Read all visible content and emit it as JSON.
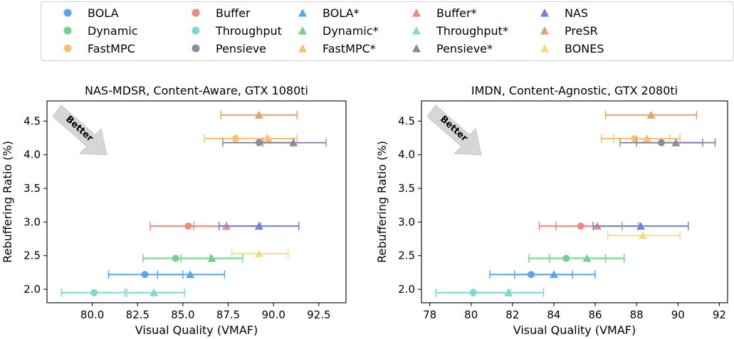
{
  "legend": [
    {
      "label": "BOLA",
      "color": "#5aa6ea",
      "marker": "circle"
    },
    {
      "label": "Dynamic",
      "color": "#6fd48a",
      "marker": "circle"
    },
    {
      "label": "FastMPC",
      "color": "#f9c26c",
      "marker": "circle"
    },
    {
      "label": "Buffer",
      "color": "#f2877c",
      "marker": "circle"
    },
    {
      "label": "Throughput",
      "color": "#7fd9d0",
      "marker": "circle"
    },
    {
      "label": "Pensieve",
      "color": "#8c8aa6",
      "marker": "circle"
    },
    {
      "label": "BOLA*",
      "color": "#5aa6ea",
      "marker": "triangle"
    },
    {
      "label": "Dynamic*",
      "color": "#6fd48a",
      "marker": "triangle"
    },
    {
      "label": "FastMPC*",
      "color": "#f9c26c",
      "marker": "triangle"
    },
    {
      "label": "Buffer*",
      "color": "#f2877c",
      "marker": "triangle"
    },
    {
      "label": "Throughput*",
      "color": "#7fd9d0",
      "marker": "triangle"
    },
    {
      "label": "Pensieve*",
      "color": "#8c8aa6",
      "marker": "triangle"
    },
    {
      "label": "NAS",
      "color": "#6d82d8",
      "marker": "triangle"
    },
    {
      "label": "PreSR",
      "color": "#eba162",
      "marker": "triangle"
    },
    {
      "label": "BONES",
      "color": "#f1de84",
      "marker": "triangle"
    }
  ],
  "better_label": "Better",
  "chart_data": [
    {
      "type": "scatter",
      "title": "NAS-MDSR, Content-Aware, GTX 1080ti",
      "xlabel": "Visual Quality (VMAF)",
      "ylabel": "Rebuffering Ratio (%)",
      "xlim": [
        77.5,
        94.0
      ],
      "ylim": [
        1.8,
        4.8
      ],
      "xticks": [
        "80.0",
        "82.5",
        "85.0",
        "87.5",
        "90.0",
        "92.5"
      ],
      "yticks": [
        "2.0",
        "2.5",
        "3.0",
        "3.5",
        "4.0",
        "4.5"
      ],
      "grid": false,
      "points": [
        {
          "series": "BOLA",
          "x": 82.9,
          "y": 2.22,
          "xerr": [
            80.9,
            85.0
          ]
        },
        {
          "series": "BOLA*",
          "x": 85.4,
          "y": 2.22,
          "xerr": [
            83.6,
            87.3
          ]
        },
        {
          "series": "Dynamic",
          "x": 84.6,
          "y": 2.46,
          "xerr": [
            82.8,
            86.5
          ]
        },
        {
          "series": "Dynamic*",
          "x": 86.6,
          "y": 2.46,
          "xerr": [
            84.9,
            88.3
          ]
        },
        {
          "series": "Throughput",
          "x": 80.1,
          "y": 1.95,
          "xerr": [
            78.3,
            81.8
          ]
        },
        {
          "series": "Throughput*",
          "x": 83.4,
          "y": 1.95,
          "xerr": [
            81.9,
            85.1
          ]
        },
        {
          "series": "Buffer",
          "x": 85.3,
          "y": 2.94,
          "xerr": [
            83.2,
            87.4
          ]
        },
        {
          "series": "Buffer*",
          "x": 87.4,
          "y": 2.94,
          "xerr": [
            85.6,
            89.3
          ]
        },
        {
          "series": "NAS",
          "x": 89.2,
          "y": 2.94,
          "xerr": [
            87.0,
            91.4
          ]
        },
        {
          "series": "BONES",
          "x": 89.2,
          "y": 2.53,
          "xerr": [
            87.7,
            90.8
          ]
        },
        {
          "series": "FastMPC",
          "x": 87.9,
          "y": 4.24,
          "xerr": [
            86.2,
            89.6
          ]
        },
        {
          "series": "FastMPC*",
          "x": 89.7,
          "y": 4.24,
          "xerr": [
            88.0,
            91.3
          ]
        },
        {
          "series": "Pensieve",
          "x": 89.2,
          "y": 4.18,
          "xerr": [
            87.2,
            91.1
          ]
        },
        {
          "series": "Pensieve*",
          "x": 91.1,
          "y": 4.18,
          "xerr": [
            89.4,
            92.9
          ]
        },
        {
          "series": "PreSR",
          "x": 89.2,
          "y": 4.59,
          "xerr": [
            87.1,
            91.3
          ]
        }
      ]
    },
    {
      "type": "scatter",
      "title": "IMDN, Content-Agnostic, GTX 2080ti",
      "xlabel": "Visual Quality (VMAF)",
      "ylabel": "Rebuffering Ratio (%)",
      "xlim": [
        77.6,
        92.4
      ],
      "ylim": [
        1.8,
        4.8
      ],
      "xticks": [
        "78",
        "80",
        "82",
        "84",
        "86",
        "88",
        "90",
        "92"
      ],
      "yticks": [
        "2.0",
        "2.5",
        "3.0",
        "3.5",
        "4.0",
        "4.5"
      ],
      "grid": false,
      "points": [
        {
          "series": "BOLA",
          "x": 82.9,
          "y": 2.22,
          "xerr": [
            80.9,
            84.9
          ]
        },
        {
          "series": "BOLA*",
          "x": 84.0,
          "y": 2.22,
          "xerr": [
            82.1,
            86.0
          ]
        },
        {
          "series": "Dynamic",
          "x": 84.6,
          "y": 2.46,
          "xerr": [
            82.8,
            86.5
          ]
        },
        {
          "series": "Dynamic*",
          "x": 85.6,
          "y": 2.46,
          "xerr": [
            83.8,
            87.4
          ]
        },
        {
          "series": "Throughput",
          "x": 80.1,
          "y": 1.95,
          "xerr": [
            78.3,
            81.9
          ]
        },
        {
          "series": "Throughput*",
          "x": 81.8,
          "y": 1.95,
          "xerr": [
            80.1,
            83.5
          ]
        },
        {
          "series": "Buffer",
          "x": 85.3,
          "y": 2.94,
          "xerr": [
            83.3,
            87.3
          ]
        },
        {
          "series": "Buffer*",
          "x": 86.1,
          "y": 2.94,
          "xerr": [
            84.1,
            88.1
          ]
        },
        {
          "series": "NAS",
          "x": 88.2,
          "y": 2.94,
          "xerr": [
            85.9,
            90.5
          ]
        },
        {
          "series": "BONES",
          "x": 88.3,
          "y": 2.8,
          "xerr": [
            86.6,
            90.1
          ]
        },
        {
          "series": "FastMPC",
          "x": 87.9,
          "y": 4.24,
          "xerr": [
            86.3,
            89.6
          ]
        },
        {
          "series": "FastMPC*",
          "x": 88.5,
          "y": 4.24,
          "xerr": [
            86.9,
            90.1
          ]
        },
        {
          "series": "Pensieve",
          "x": 89.2,
          "y": 4.18,
          "xerr": [
            87.2,
            91.2
          ]
        },
        {
          "series": "Pensieve*",
          "x": 89.9,
          "y": 4.18,
          "xerr": [
            88.0,
            91.8
          ]
        },
        {
          "series": "PreSR",
          "x": 88.7,
          "y": 4.59,
          "xerr": [
            86.5,
            90.9
          ]
        }
      ]
    }
  ]
}
